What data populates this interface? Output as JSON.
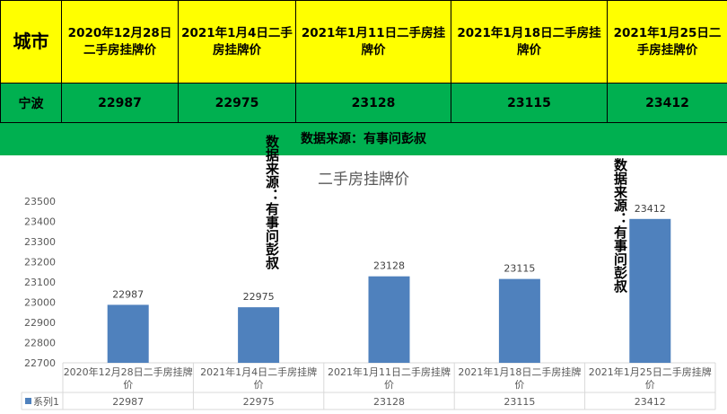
{
  "table": {
    "header": {
      "city_label": "城市",
      "columns": [
        "2020年12月28日二手房挂牌价",
        "2021年1月4日二手房挂牌价",
        "2021年1月11日二手房挂牌价",
        "2021年1月18日二手房挂牌价",
        "2021年1月25日二手房挂牌价"
      ]
    },
    "row": {
      "city": "宁波",
      "values": [
        "22987",
        "22975",
        "23128",
        "23115",
        "23412"
      ]
    }
  },
  "source_note": "数据来源：有事问彭叔",
  "watermark": "数据来源：有事问彭叔",
  "colors": {
    "header_bg": "#ffff00",
    "row_bg": "#00b050",
    "bar": "#4f81bd",
    "title": "#595959"
  },
  "chart_data": {
    "type": "bar",
    "title": "二手房挂牌价",
    "categories": [
      "2020年12月28日二手房挂牌价",
      "2021年1月4日二手房挂牌价",
      "2021年1月11日二手房挂牌价",
      "2021年1月18日二手房挂牌价",
      "2021年1月25日二手房挂牌价"
    ],
    "series": [
      {
        "name": "系列1",
        "values": [
          22987,
          22975,
          23128,
          23115,
          23412
        ]
      }
    ],
    "ylim": [
      22700,
      23500
    ],
    "yticks": [
      "22700",
      "22800",
      "22900",
      "23000",
      "23100",
      "23200",
      "23300",
      "23400",
      "23500"
    ],
    "data_labels": [
      "22987",
      "22975",
      "23128",
      "23115",
      "23412"
    ],
    "grid": false,
    "data_table": true
  }
}
